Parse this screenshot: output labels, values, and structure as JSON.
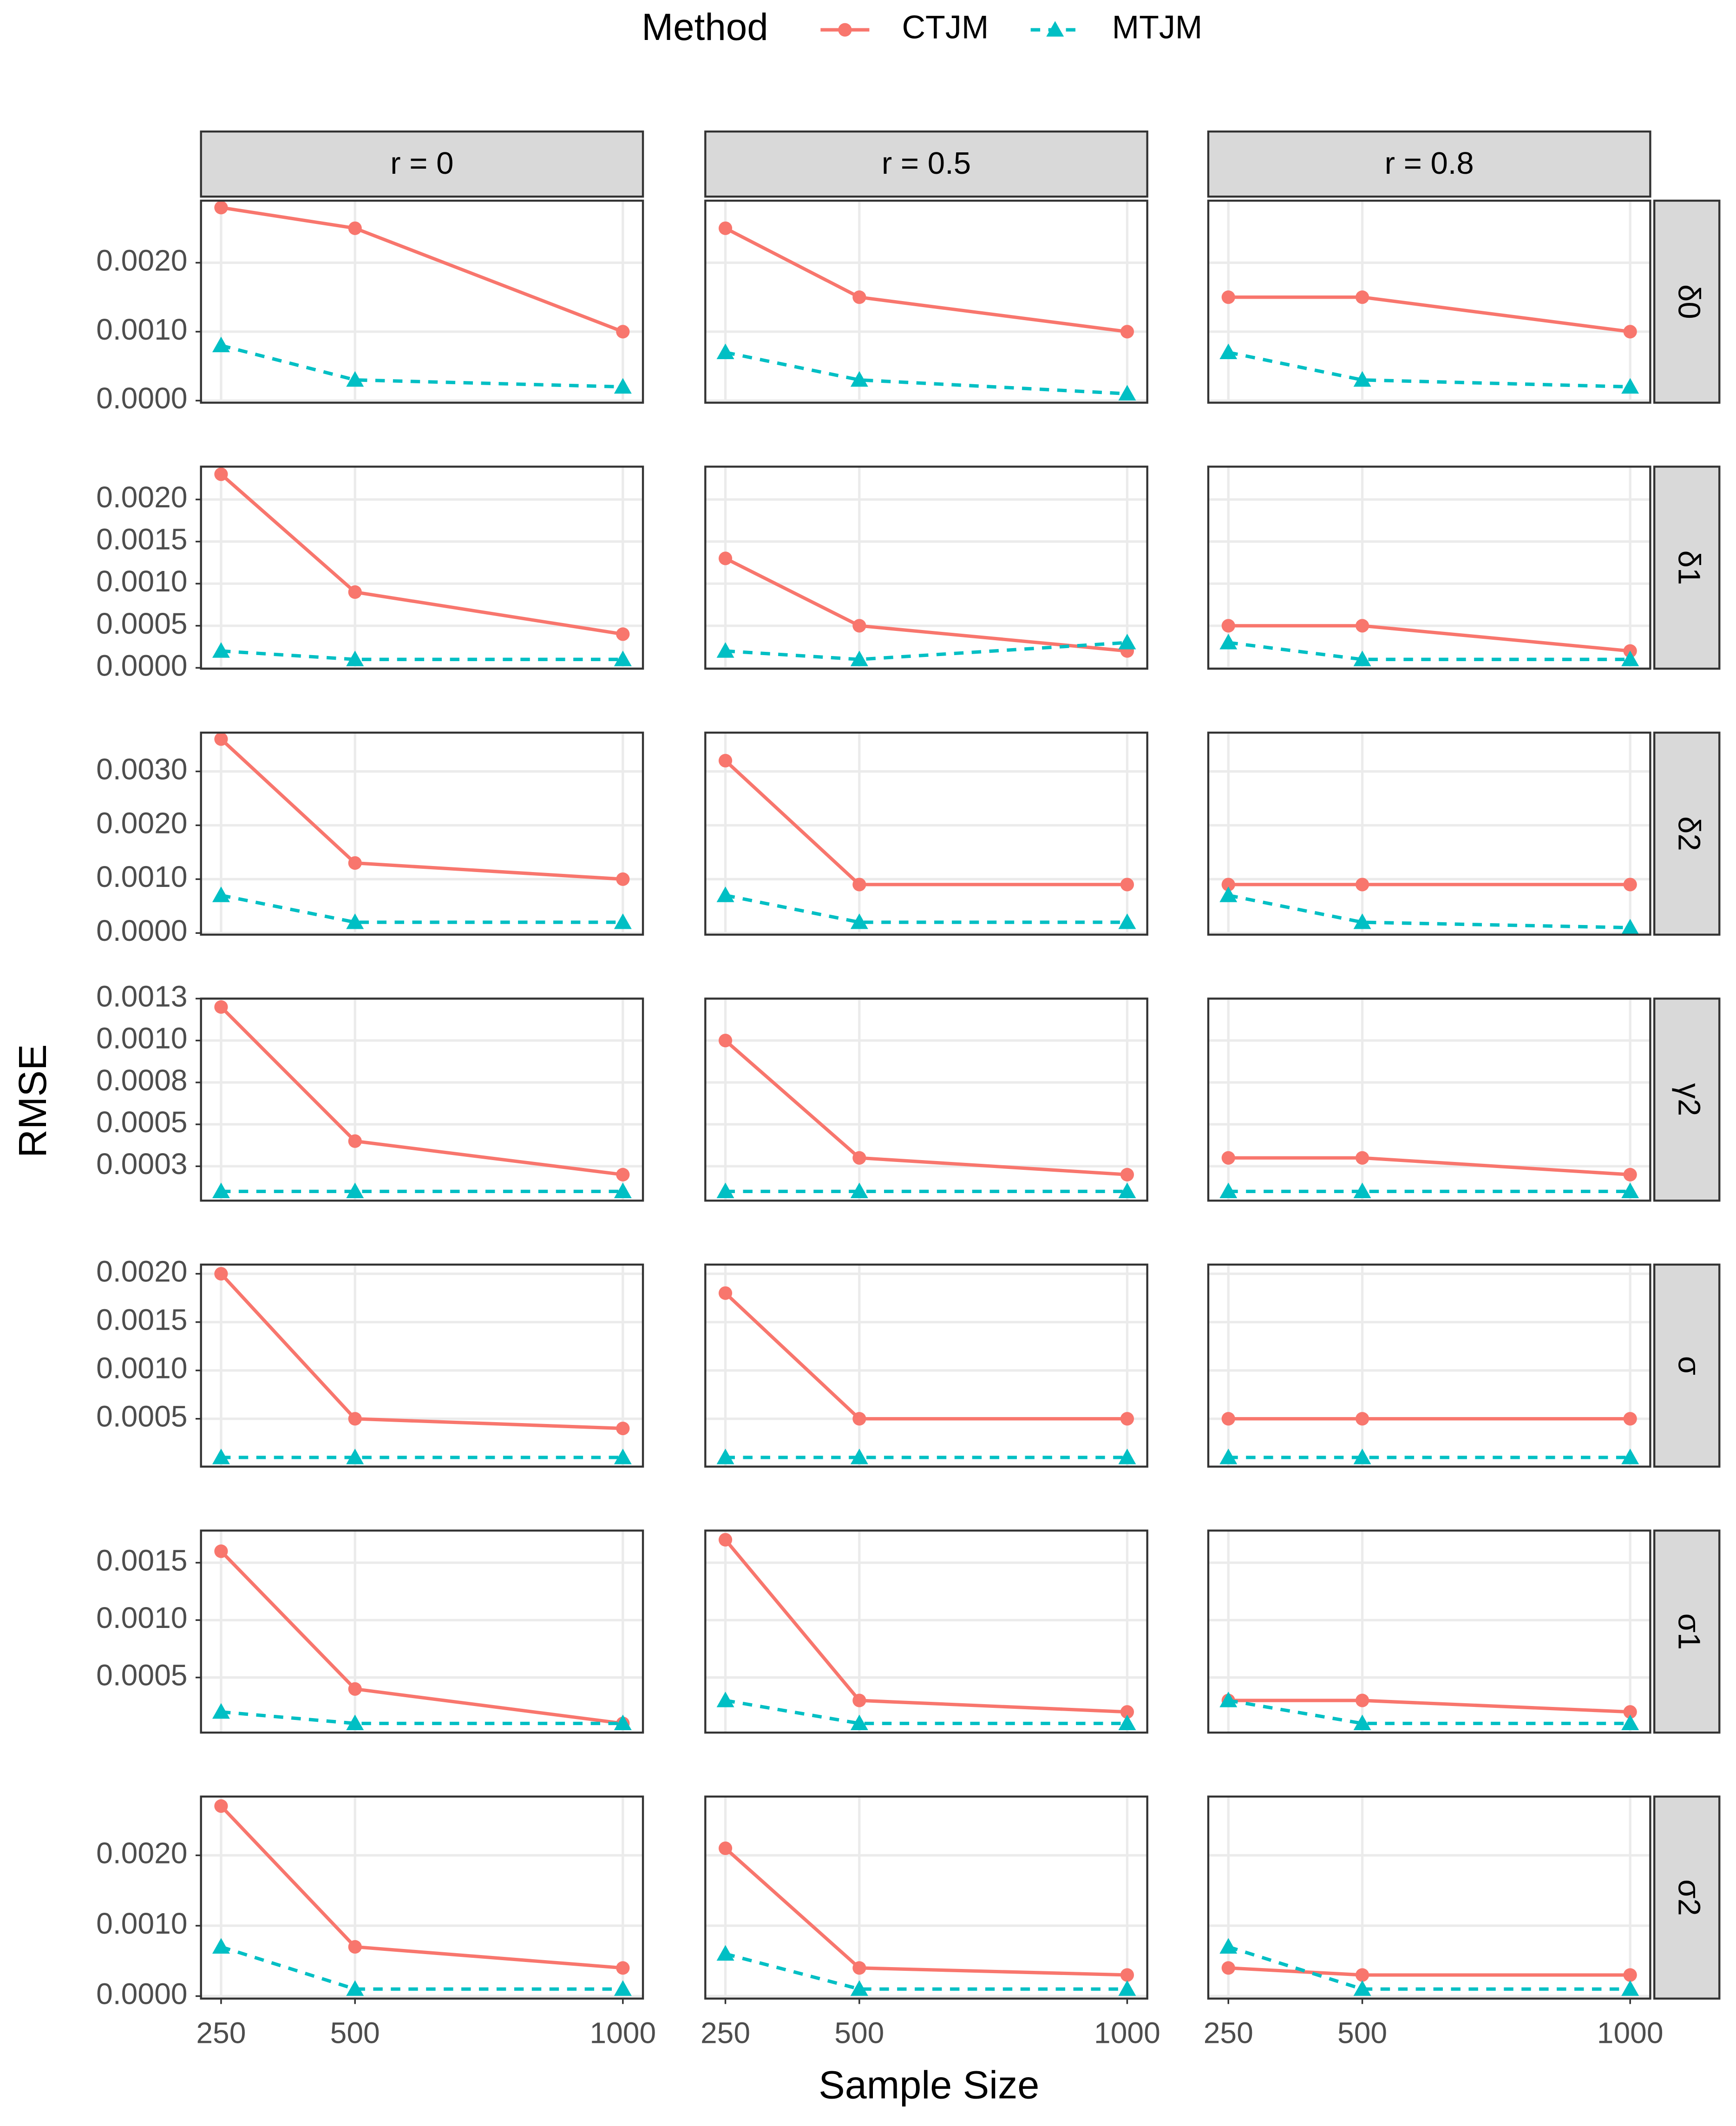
{
  "chart_data": {
    "type": "line",
    "legend_title": "Method",
    "legend_position": "top",
    "x_label": "Sample Size",
    "y_label": "RMSE",
    "columns": [
      "r = 0",
      "r = 0.5",
      "r = 0.8"
    ],
    "x": [
      250,
      500,
      1000
    ],
    "xlim": [
      212.5,
      1037.5
    ],
    "xticks": [
      250,
      500,
      1000
    ],
    "grid": true,
    "series": [
      {
        "name": "CTJM",
        "color": "#F8766D",
        "marker": "circle",
        "dash": "solid"
      },
      {
        "name": "MTJM",
        "color": "#00BFC4",
        "marker": "triangle",
        "dash": "dashed"
      }
    ],
    "rows": [
      {
        "label": "δ0",
        "ylim": [
          -3e-05,
          0.0029
        ],
        "yticks": [
          {
            "value": 0,
            "label": "0.0000"
          },
          {
            "value": 0.001,
            "label": "0.0010"
          },
          {
            "value": 0.002,
            "label": "0.0020"
          }
        ],
        "values": [
          [
            [
              0.0028,
              0.0025,
              0.001
            ],
            [
              0.0008,
              0.0003,
              0.0002
            ]
          ],
          [
            [
              0.0025,
              0.0015,
              0.001
            ],
            [
              0.0007,
              0.0003,
              0.0001
            ]
          ],
          [
            [
              0.0015,
              0.0015,
              0.001
            ],
            [
              0.0007,
              0.0003,
              0.0002
            ]
          ]
        ]
      },
      {
        "label": "δ1",
        "ylim": [
          -1e-05,
          0.00239
        ],
        "yticks": [
          {
            "value": 0,
            "label": "0.0000"
          },
          {
            "value": 0.0005,
            "label": "0.0005"
          },
          {
            "value": 0.001,
            "label": "0.0010"
          },
          {
            "value": 0.0015,
            "label": "0.0015"
          },
          {
            "value": 0.002,
            "label": "0.0020"
          }
        ],
        "values": [
          [
            [
              0.0023,
              0.0009,
              0.0004
            ],
            [
              0.0002,
              0.0001,
              0.0001
            ]
          ],
          [
            [
              0.0013,
              0.0005,
              0.0002
            ],
            [
              0.0002,
              0.0001,
              0.0003
            ]
          ],
          [
            [
              0.0005,
              0.0005,
              0.0002
            ],
            [
              0.0003,
              0.0001,
              0.0001
            ]
          ]
        ]
      },
      {
        "label": "δ2",
        "ylim": [
          -3e-05,
          0.00372
        ],
        "yticks": [
          {
            "value": 0,
            "label": "0.0000"
          },
          {
            "value": 0.001,
            "label": "0.0010"
          },
          {
            "value": 0.002,
            "label": "0.0020"
          },
          {
            "value": 0.003,
            "label": "0.0030"
          }
        ],
        "values": [
          [
            [
              0.0036,
              0.0013,
              0.001
            ],
            [
              0.0007,
              0.0002,
              0.0002
            ]
          ],
          [
            [
              0.0032,
              0.0009,
              0.0009
            ],
            [
              0.0007,
              0.0002,
              0.0002
            ]
          ],
          [
            [
              0.0009,
              0.0009,
              0.0009
            ],
            [
              0.0007,
              0.0002,
              0.0001
            ]
          ]
        ]
      },
      {
        "label": "γ2",
        "ylim": [
          4.5e-05,
          0.00125
        ],
        "yticks": [
          {
            "value": 0.00025,
            "label": "0.0003"
          },
          {
            "value": 0.0005,
            "label": "0.0005"
          },
          {
            "value": 0.00075,
            "label": "0.0008"
          },
          {
            "value": 0.001,
            "label": "0.0010"
          },
          {
            "value": 0.00125,
            "label": "0.0013"
          }
        ],
        "values": [
          [
            [
              0.0012,
              0.0004,
              0.0002
            ],
            [
              0.0001,
              0.0001,
              0.0001
            ]
          ],
          [
            [
              0.001,
              0.0003,
              0.0002
            ],
            [
              0.0001,
              0.0001,
              0.0001
            ]
          ],
          [
            [
              0.0003,
              0.0003,
              0.0002
            ],
            [
              0.0001,
              0.0001,
              0.0001
            ]
          ]
        ]
      },
      {
        "label": "σ",
        "ylim": [
          5e-06,
          0.002095
        ],
        "yticks": [
          {
            "value": 0.0005,
            "label": "0.0005"
          },
          {
            "value": 0.001,
            "label": "0.0010"
          },
          {
            "value": 0.0015,
            "label": "0.0015"
          },
          {
            "value": 0.002,
            "label": "0.0020"
          }
        ],
        "values": [
          [
            [
              0.002,
              0.0005,
              0.0004
            ],
            [
              0.0001,
              0.0001,
              0.0001
            ]
          ],
          [
            [
              0.0018,
              0.0005,
              0.0005
            ],
            [
              0.0001,
              0.0001,
              0.0001
            ]
          ],
          [
            [
              0.0005,
              0.0005,
              0.0005
            ],
            [
              0.0001,
              0.0001,
              0.0001
            ]
          ]
        ]
      },
      {
        "label": "σ1",
        "ylim": [
          2e-05,
          0.00178
        ],
        "yticks": [
          {
            "value": 0.0005,
            "label": "0.0005"
          },
          {
            "value": 0.001,
            "label": "0.0010"
          },
          {
            "value": 0.0015,
            "label": "0.0015"
          }
        ],
        "values": [
          [
            [
              0.0016,
              0.0004,
              0.0001
            ],
            [
              0.0002,
              0.0001,
              0.0001
            ]
          ],
          [
            [
              0.0017,
              0.0003,
              0.0002
            ],
            [
              0.0003,
              0.0001,
              0.0001
            ]
          ],
          [
            [
              0.0003,
              0.0003,
              0.0002
            ],
            [
              0.0003,
              0.0001,
              0.0001
            ]
          ]
        ]
      },
      {
        "label": "σ2",
        "ylim": [
          -3.5e-05,
          0.002835
        ],
        "yticks": [
          {
            "value": 0,
            "label": "0.0000"
          },
          {
            "value": 0.001,
            "label": "0.0010"
          },
          {
            "value": 0.002,
            "label": "0.0020"
          }
        ],
        "values": [
          [
            [
              0.0027,
              0.0007,
              0.0004
            ],
            [
              0.0007,
              0.0001,
              0.0001
            ]
          ],
          [
            [
              0.0021,
              0.0004,
              0.0003
            ],
            [
              0.0006,
              0.0001,
              0.0001
            ]
          ],
          [
            [
              0.0004,
              0.0003,
              0.0003
            ],
            [
              0.0007,
              0.0001,
              0.0001
            ]
          ]
        ]
      }
    ]
  }
}
